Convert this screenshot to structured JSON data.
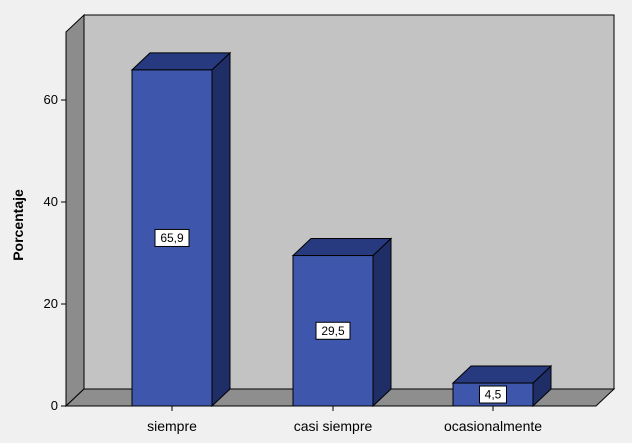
{
  "chart_data": {
    "type": "bar",
    "style": "3d",
    "categories": [
      "siempre",
      "casi siempre",
      "ocasionalmente"
    ],
    "values": [
      65.9,
      29.5,
      4.5
    ],
    "data_labels": [
      "65,9",
      "29,5",
      "4,5"
    ],
    "ylabel": "Porcentaje",
    "xlabel": "",
    "ylim": [
      0,
      70
    ],
    "yticks": [
      0,
      20,
      40,
      60
    ],
    "ytick_labels": [
      "0",
      "20",
      "40",
      "60"
    ],
    "grid": false,
    "colors": {
      "bar_front": "#3e57ad",
      "bar_top": "#283a7f",
      "bar_side": "#1f2e66",
      "back_wall": "#c3c3c3",
      "side_wall": "#8c8c8c",
      "floor": "#8e8e8e"
    }
  }
}
